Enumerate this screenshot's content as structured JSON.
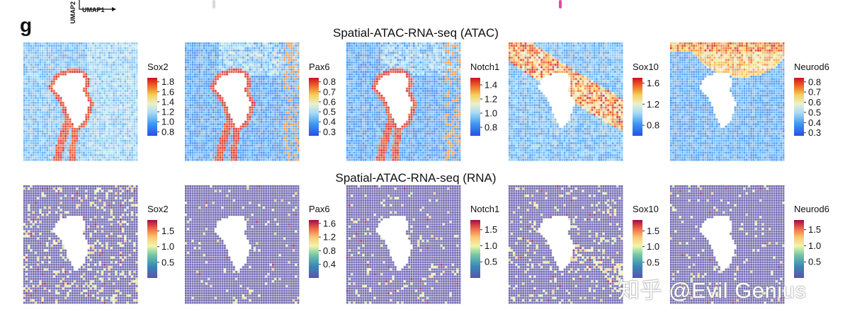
{
  "header": {
    "panel_letter": "g",
    "umap_y_label": "UMAP2",
    "umap_x_label": "UMAP1"
  },
  "watermark": "知乎 @Evil Genius",
  "chart_data": [
    {
      "type": "heatmap",
      "title": "Spatial-ATAC-RNA-seq (ATAC)",
      "colormap": "jet",
      "panels": [
        {
          "gene": "Sox2",
          "ticks": [
            "1.8",
            "1.6",
            "1.4",
            "1.2",
            "1.0",
            "0.8"
          ],
          "tick_values": [
            1.8,
            1.6,
            1.4,
            1.2,
            1.0,
            0.8
          ],
          "range": [
            0.72,
            1.88
          ]
        },
        {
          "gene": "Pax6",
          "ticks": [
            "0.8",
            "0.7",
            "0.6",
            "0.5",
            "0.4",
            "0.3"
          ],
          "tick_values": [
            0.8,
            0.7,
            0.6,
            0.5,
            0.4,
            0.3
          ],
          "range": [
            0.26,
            0.84
          ]
        },
        {
          "gene": "Notch1",
          "ticks": [
            "1.4",
            "1.2",
            "1.0",
            "0.8"
          ],
          "tick_values": [
            1.4,
            1.2,
            1.0,
            0.8
          ],
          "range": [
            0.68,
            1.5
          ]
        },
        {
          "gene": "Sox10",
          "ticks": [
            "1.6",
            "1.2",
            "0.8"
          ],
          "tick_values": [
            1.6,
            1.2,
            0.8
          ],
          "range": [
            0.6,
            1.7
          ]
        },
        {
          "gene": "Neurod6",
          "ticks": [
            "0.8",
            "0.7",
            "0.6",
            "0.5",
            "0.4",
            "0.3"
          ],
          "tick_values": [
            0.8,
            0.7,
            0.6,
            0.5,
            0.4,
            0.3
          ],
          "range": [
            0.27,
            0.84
          ]
        }
      ]
    },
    {
      "type": "heatmap",
      "title": "Spatial-ATAC-RNA-seq (RNA)",
      "colormap": "spectral",
      "panels": [
        {
          "gene": "Sox2",
          "ticks": [
            "1.5",
            "1.0",
            "0.5"
          ],
          "tick_values": [
            1.5,
            1.0,
            0.5
          ],
          "range": [
            0.0,
            1.85
          ]
        },
        {
          "gene": "Pax6",
          "ticks": [
            "1.6",
            "1.2",
            "0.8",
            "0.4"
          ],
          "tick_values": [
            1.6,
            1.2,
            0.8,
            0.4
          ],
          "range": [
            0.0,
            1.7
          ]
        },
        {
          "gene": "Notch1",
          "ticks": [
            "1.5",
            "1.0",
            "0.5"
          ],
          "tick_values": [
            1.5,
            1.0,
            0.5
          ],
          "range": [
            0.0,
            1.8
          ]
        },
        {
          "gene": "Sox10",
          "ticks": [
            "1.5",
            "1.0",
            "0.5"
          ],
          "tick_values": [
            1.5,
            1.0,
            0.5
          ],
          "range": [
            0.0,
            1.85
          ]
        },
        {
          "gene": "Neurod6",
          "ticks": [
            "1.5",
            "1.0",
            "0.5"
          ],
          "tick_values": [
            1.5,
            1.0,
            0.5
          ],
          "range": [
            0.0,
            1.8
          ]
        }
      ]
    }
  ]
}
